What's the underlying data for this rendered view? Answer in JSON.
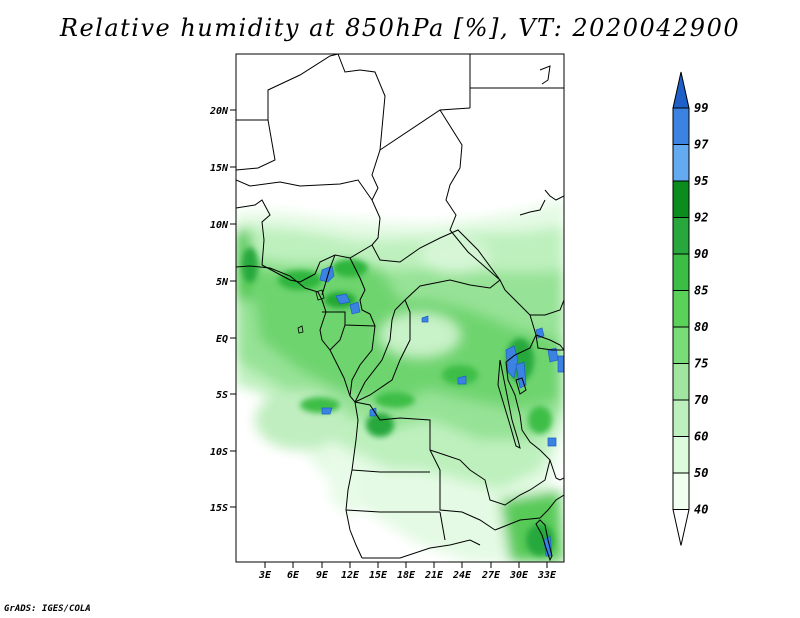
{
  "title": "Relative humidity at 850hPa [%], VT: 2020042900",
  "credit": "GrADS: IGES/COLA",
  "map": {
    "lat_labels": [
      "20N",
      "15N",
      "10N",
      "5N",
      "EQ",
      "5S",
      "10S",
      "15S"
    ],
    "lon_labels": [
      "3E",
      "6E",
      "9E",
      "12E",
      "15E",
      "18E",
      "21E",
      "24E",
      "27E",
      "30E",
      "33E"
    ],
    "variable": "Relative humidity at 850hPa",
    "units": "%",
    "valid_time": "2020042900"
  },
  "colorbar": {
    "levels": [
      "99",
      "97",
      "95",
      "92",
      "90",
      "85",
      "80",
      "75",
      "70",
      "60",
      "50",
      "40"
    ],
    "colors": [
      "#1e5fc8",
      "#3c82e0",
      "#64aaf0",
      "#0a8c1e",
      "#28a83c",
      "#3cbe46",
      "#5ad25a",
      "#78dc78",
      "#a0e6a0",
      "#bef0be",
      "#dcfadc",
      "#f0fff0",
      "#ffffff"
    ]
  }
}
